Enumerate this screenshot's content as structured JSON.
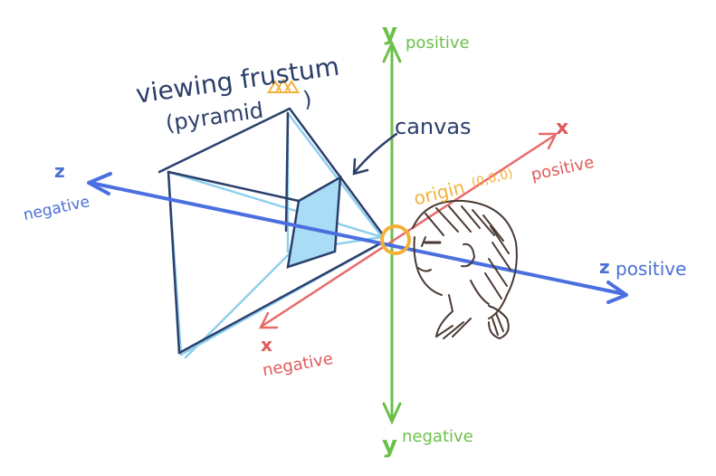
{
  "labels": {
    "title_line1": "viewing frustum",
    "title_line2": "(pyramid",
    "title_paren_close": ")",
    "canvas": "canvas",
    "origin": "origin",
    "origin_coords": "(0,0,0)",
    "y_letter_top": "y",
    "y_positive": "positive",
    "y_letter_bottom": "y",
    "y_negative": "negative",
    "x_letter_right": "x",
    "x_positive": "positive",
    "x_letter_left": "x",
    "x_negative": "negative",
    "z_letter_left": "z",
    "z_negative": "negative",
    "z_letter_right": "z",
    "z_positive": "positive"
  },
  "colors": {
    "navy": "#2b3f6b",
    "frustum_light": "#8fd0ee",
    "canvas_fill": "#a9dcf5",
    "y_axis": "#6cc04a",
    "x_axis": "#e86a6a",
    "z_axis": "#4a6fe0",
    "origin": "#f2b23a",
    "person_lines": "#4a3a33"
  }
}
